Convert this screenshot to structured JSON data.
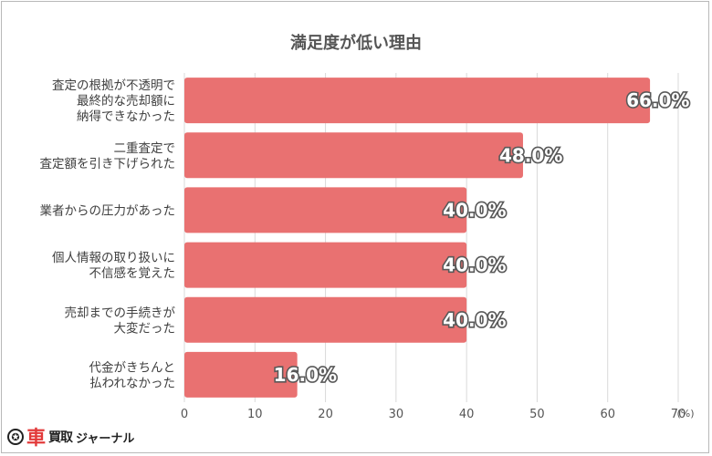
{
  "chart_data": {
    "type": "bar",
    "orientation": "horizontal",
    "title": "満足度が低い理由",
    "categories": [
      [
        "査定の根拠が不透明で",
        "最終的な売却額に",
        "納得できなかった"
      ],
      [
        "二重査定で",
        "査定額を引き下げられた"
      ],
      [
        "業者からの圧力があった"
      ],
      [
        "個人情報の取り扱いに",
        "不信感を覚えた"
      ],
      [
        "売却までの手続きが",
        "大変だった"
      ],
      [
        "代金がきちんと",
        "払われなかった"
      ]
    ],
    "values": [
      66.0,
      48.0,
      40.0,
      40.0,
      40.0,
      16.0
    ],
    "value_labels": [
      "66.0%",
      "48.0%",
      "40.0%",
      "40.0%",
      "40.0%",
      "16.0%"
    ],
    "xlim": [
      0,
      70
    ],
    "x_ticks": [
      "0",
      "10",
      "20",
      "30",
      "40",
      "50",
      "60",
      "70"
    ],
    "x_unit": "(%)",
    "grid": true,
    "bar_color": "#e97171",
    "grid_color": "#d9d9d9"
  },
  "logo": {
    "mark": "✪",
    "kuruma": "車",
    "kaitori": "買取",
    "journal": "ジャーナル"
  }
}
